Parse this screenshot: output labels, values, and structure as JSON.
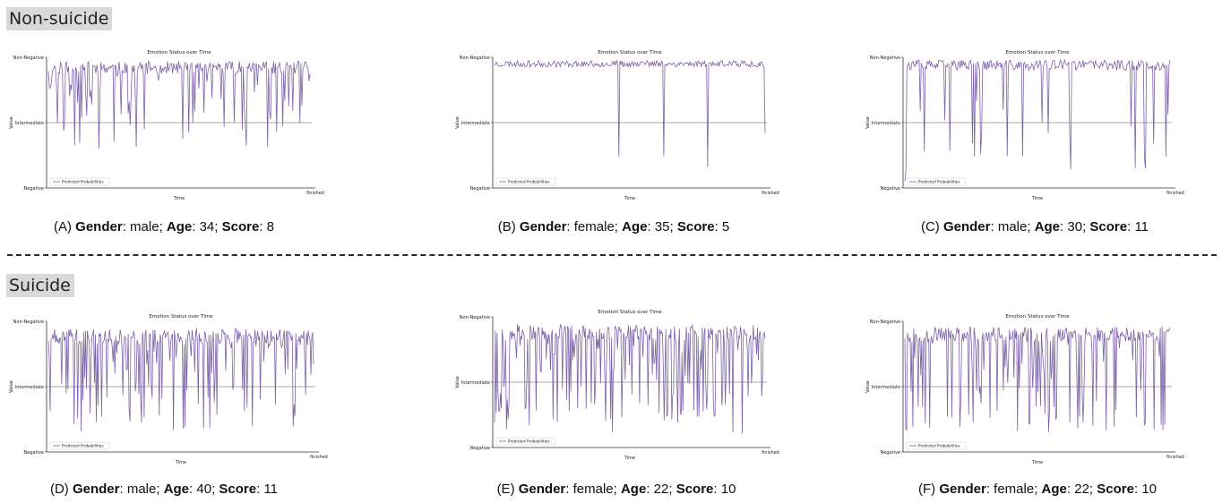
{
  "groups": [
    {
      "label": "Non-suicide"
    },
    {
      "label": "Suicide"
    }
  ],
  "common": {
    "gender_label": "Gender",
    "age_label": "Age",
    "score_label": "Score",
    "line_color": "#7c63a8"
  },
  "chart_data": [
    {
      "type": "line",
      "letter": "(A)",
      "gender": "male",
      "age": "34",
      "score": "8",
      "title": "Emotion Status over Time",
      "xlabel": "Time",
      "ylabel": "Value",
      "yticks": [
        "Negative",
        "Intermediate",
        "Non-Negative"
      ],
      "xend_label": "finished",
      "legend": "Predicted Probabilities",
      "seed": 11,
      "n": 260,
      "mean": 0.92,
      "dip_prob": 0.26,
      "dip_min": 0.3,
      "dip_max": 0.95,
      "noise": 0.05
    },
    {
      "type": "line",
      "letter": "(B)",
      "gender": "female",
      "age": "35",
      "score": "5",
      "title": "Emotion Status over Time",
      "xlabel": "Time",
      "ylabel": "Value",
      "yticks": [
        "Negative",
        "Intermediate",
        "Non-Negative"
      ],
      "xend_label": "finished",
      "legend": "Predicted Probabilities",
      "seed": 23,
      "n": 260,
      "mean": 0.95,
      "dip_prob": 0.01,
      "dip_min": 0.15,
      "dip_max": 0.25,
      "noise": 0.025
    },
    {
      "type": "line",
      "letter": "(C)",
      "gender": "male",
      "age": "30",
      "score": "11",
      "title": "Emotion Status over Time",
      "xlabel": "Time",
      "ylabel": "Value",
      "yticks": [
        "Negative",
        "Intermediate",
        "Non-Negative"
      ],
      "xend_label": "finished",
      "legend": "Predicted Probabilities",
      "seed": 37,
      "n": 260,
      "mean": 0.94,
      "dip_prob": 0.07,
      "dip_min": 0.1,
      "dip_max": 0.7,
      "noise": 0.04
    },
    {
      "type": "line",
      "letter": "(D)",
      "gender": "male",
      "age": "40",
      "score": "11",
      "title": "Emotion Status over Time",
      "xlabel": "Time",
      "ylabel": "Value",
      "yticks": [
        "Negative",
        "Intermediate",
        "Non-Negative"
      ],
      "xend_label": "finished",
      "legend": "Predicted Probabilities",
      "seed": 41,
      "n": 300,
      "mean": 0.88,
      "dip_prob": 0.35,
      "dip_min": 0.15,
      "dip_max": 0.95,
      "noise": 0.06
    },
    {
      "type": "line",
      "letter": "(E)",
      "gender": "female",
      "age": "22",
      "score": "10",
      "title": "Emotion Status over Time",
      "xlabel": "Time",
      "ylabel": "Value",
      "yticks": [
        "Negative",
        "Intermediate",
        "Non-Negative"
      ],
      "xend_label": "finished",
      "legend": "Predicted Probabilities",
      "seed": 53,
      "n": 320,
      "mean": 0.88,
      "dip_prob": 0.4,
      "dip_min": 0.1,
      "dip_max": 0.95,
      "noise": 0.06
    },
    {
      "type": "line",
      "letter": "(F)",
      "gender": "female",
      "age": "22",
      "score": "10",
      "title": "Emotion Status over Time",
      "xlabel": "Time",
      "ylabel": "Value",
      "yticks": [
        "Negative",
        "Intermediate",
        "Non-Negative"
      ],
      "xend_label": "finished",
      "legend": "Predicted Probabilities",
      "seed": 67,
      "n": 300,
      "mean": 0.9,
      "dip_prob": 0.35,
      "dip_min": 0.15,
      "dip_max": 0.95,
      "noise": 0.06
    }
  ]
}
